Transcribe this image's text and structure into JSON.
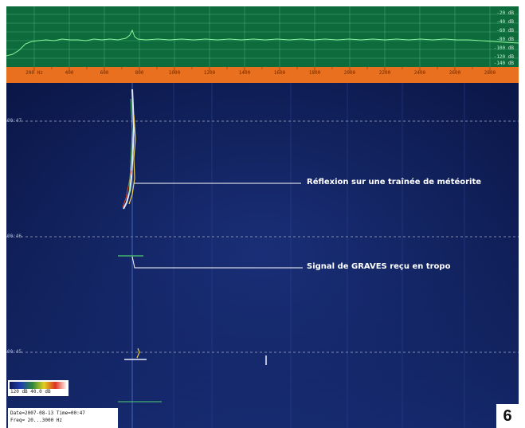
{
  "spectrum": {
    "db_labels": [
      "-20 dB",
      "-40 dB",
      "-60 dB",
      "-80 dB",
      "-100 dB",
      "-120 dB",
      "-140 dB"
    ]
  },
  "ruler": {
    "tick_labels": [
      "200 Hz",
      "400",
      "600",
      "800",
      "1000",
      "1200",
      "1400",
      "1600",
      "1800",
      "2000",
      "2200",
      "2400",
      "2600",
      "2800"
    ]
  },
  "waterfall": {
    "time_labels": [
      "00:47",
      "00:46",
      "00:45"
    ],
    "annotations": {
      "meteor": "Réflexion sur une traînée de météorite",
      "tropo": "Signal de GRAVES reçu en tropo"
    }
  },
  "legend": {
    "range": "120 dB  40.0 dB"
  },
  "info": {
    "line1": "Date=2007-08-13 Time=00:47",
    "line2": "Freq= 20...3000 Hz"
  },
  "figure_number": "6",
  "colors": {
    "background": "#0c1a46",
    "spectrum_bg": "#0d6b3c",
    "ruler": "#e8701e",
    "trace": "#7cf08a"
  }
}
